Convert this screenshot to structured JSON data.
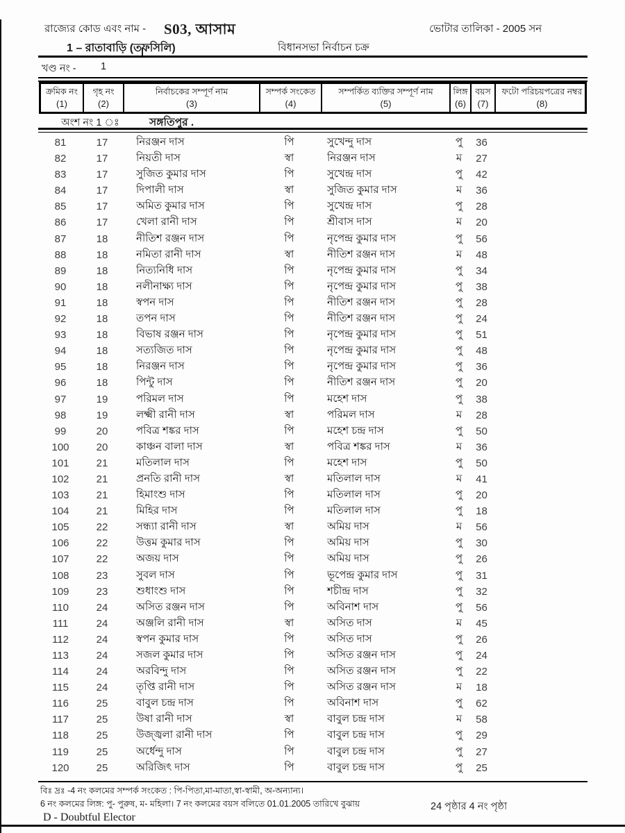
{
  "header": {
    "state_label": "রাজ্যের কোড এবং নাম -",
    "state_code": "S03, আসাম",
    "roll_title": "ভোটার তালিকা - 2005  সন",
    "constituency": "1 – রাতাবাড়ি (তফসিলি)",
    "assembly_label": "বিধানসভা নির্বাচন চক্র",
    "part_label": "খণ্ড নং  -",
    "part_value": "1"
  },
  "table": {
    "columns": [
      {
        "label": "ক্রমিক নং",
        "num": "(1)"
      },
      {
        "label": "গৃহ নং",
        "num": "(2)"
      },
      {
        "label": "নির্বাচকের সম্পূর্ণ নাম",
        "num": "(3)"
      },
      {
        "label": "সম্পর্ক সংকেত",
        "num": "(4)"
      },
      {
        "label": "সম্পর্কিত ব্যক্তির সম্পূর্ণ নাম",
        "num": "(5)"
      },
      {
        "label": "লিঙ্গ",
        "num": "(6)"
      },
      {
        "label": "বয়স",
        "num": "(7)"
      },
      {
        "label": "ফটো পরিচয়পত্রের নম্বর",
        "num": "(8)"
      }
    ],
    "section_label": "অংশ নং  1  ঃ",
    "section_name": "সঙ্গতিপুর .",
    "rows": [
      [
        "81",
        "17",
        "নিরঞ্জন দাস",
        "পি",
        "সুখেন্দু দাস",
        "পু",
        "36",
        ""
      ],
      [
        "82",
        "17",
        "নিয়তী দাস",
        "স্বা",
        "নিরঞ্জন দাস",
        "ম",
        "27",
        ""
      ],
      [
        "83",
        "17",
        "সুজিত কুমার দাস",
        "পি",
        "সুখেন্দ্র দাস",
        "পু",
        "42",
        ""
      ],
      [
        "84",
        "17",
        "দিপালী দাস",
        "স্বা",
        "সুজিত কুমার দাস",
        "ম",
        "36",
        ""
      ],
      [
        "85",
        "17",
        "অমিত কুমার দাস",
        "পি",
        "সুখেন্দ্র দাস",
        "পু",
        "28",
        ""
      ],
      [
        "86",
        "17",
        "খেলা রানী দাস",
        "পি",
        "শ্রীবাস দাস",
        "ম",
        "20",
        ""
      ],
      [
        "87",
        "18",
        "নীতিশ রঞ্জন দাস",
        "পি",
        "নৃপেন্দ্র কুমার দাস",
        "পু",
        "56",
        ""
      ],
      [
        "88",
        "18",
        "নমিতা রানী দাস",
        "স্বা",
        "নীতিশ রঞ্জন দাস",
        "ম",
        "48",
        ""
      ],
      [
        "89",
        "18",
        "নিত্যনিধি দাস",
        "পি",
        "নৃপেন্দ্র কুমার দাস",
        "পু",
        "34",
        ""
      ],
      [
        "90",
        "18",
        "নলীনাক্ষ্য দাস",
        "পি",
        "নৃপেন্দ্র কুমার দাস",
        "পু",
        "38",
        ""
      ],
      [
        "91",
        "18",
        "স্বপন দাস",
        "পি",
        "নীতিশ রঞ্জন দাস",
        "পু",
        "28",
        ""
      ],
      [
        "92",
        "18",
        "তপন দাস",
        "পি",
        "নীতিশ রঞ্জন দাস",
        "পু",
        "24",
        ""
      ],
      [
        "93",
        "18",
        "বিভাষ রঞ্জন দাস",
        "পি",
        "নৃপেন্দ্র কুমার দাস",
        "পু",
        "51",
        ""
      ],
      [
        "94",
        "18",
        "সত্যজিত দাস",
        "পি",
        "নৃপেন্দ্র কুমার দাস",
        "পু",
        "48",
        ""
      ],
      [
        "95",
        "18",
        "নিরঞ্জন দাস",
        "পি",
        "নৃপেন্দ্র কুমার দাস",
        "পু",
        "36",
        ""
      ],
      [
        "96",
        "18",
        "পিন্টু দাস",
        "পি",
        "নীতিশ রঞ্জন দাস",
        "পু",
        "20",
        ""
      ],
      [
        "97",
        "19",
        "পরিমল দাস",
        "পি",
        "মহেশ দাস",
        "পু",
        "38",
        ""
      ],
      [
        "98",
        "19",
        "লক্ষ্মী রানী দাস",
        "স্বা",
        "পরিমল দাস",
        "ম",
        "28",
        ""
      ],
      [
        "99",
        "20",
        "পবিত্র শঙ্কর দাস",
        "পি",
        "মহেশ চন্দ্র দাস",
        "পু",
        "50",
        ""
      ],
      [
        "100",
        "20",
        "কাঞ্চন বালা দাস",
        "স্বা",
        "পবিত্র শঙ্কর দাস",
        "ম",
        "36",
        ""
      ],
      [
        "101",
        "21",
        "মতিলাল দাস",
        "পি",
        "মহেশ দাস",
        "পু",
        "50",
        ""
      ],
      [
        "102",
        "21",
        "প্রনতি রানী দাস",
        "স্বা",
        "মতিলাল দাস",
        "ম",
        "41",
        ""
      ],
      [
        "103",
        "21",
        "হিমাংশু দাস",
        "পি",
        "মতিলাল দাস",
        "পু",
        "20",
        ""
      ],
      [
        "104",
        "21",
        "মিহির দাস",
        "পি",
        "মতিলাল দাস",
        "পু",
        "18",
        ""
      ],
      [
        "105",
        "22",
        "সন্ধ্যা রানী দাস",
        "স্বা",
        "অমিয় দাস",
        "ম",
        "56",
        ""
      ],
      [
        "106",
        "22",
        "উত্তম কুমার দাস",
        "পি",
        "অমিয় দাস",
        "পু",
        "30",
        ""
      ],
      [
        "107",
        "22",
        "অজয় দাস",
        "পি",
        "অমিয় দাস",
        "পু",
        "26",
        ""
      ],
      [
        "108",
        "23",
        "সুবল দাস",
        "পি",
        "ভূপেন্দ্র কুমার দাস",
        "পু",
        "31",
        ""
      ],
      [
        "109",
        "23",
        "শুধাংশু দাস",
        "পি",
        "শচীন্দ্র দাস",
        "পু",
        "32",
        ""
      ],
      [
        "110",
        "24",
        "অসিত রঞ্জন দাস",
        "পি",
        "অবিনাশ দাস",
        "পু",
        "56",
        ""
      ],
      [
        "111",
        "24",
        "অঞ্জলি রানী দাস",
        "স্বা",
        "অসিত দাস",
        "ম",
        "45",
        ""
      ],
      [
        "112",
        "24",
        "স্বপন কুমার দাস",
        "পি",
        "অসিত দাস",
        "পু",
        "26",
        ""
      ],
      [
        "113",
        "24",
        "সজল কুমার দাস",
        "পি",
        "অসিত রঞ্জন দাস",
        "পু",
        "24",
        ""
      ],
      [
        "114",
        "24",
        "অরবিন্দু দাস",
        "পি",
        "অসিত রঞ্জন দাস",
        "পু",
        "22",
        ""
      ],
      [
        "115",
        "24",
        "তৃপ্তি রানী দাস",
        "পি",
        "অসিত রঞ্জন দাস",
        "ম",
        "18",
        ""
      ],
      [
        "116",
        "25",
        "বাবুল চন্দ্র দাস",
        "পি",
        "অবিনাশ দাস",
        "পু",
        "62",
        ""
      ],
      [
        "117",
        "25",
        "উষা রানী দাস",
        "স্বা",
        "বাবুল চন্দ্র দাস",
        "ম",
        "58",
        ""
      ],
      [
        "118",
        "25",
        "উজ্জ্বলা রানী দাস",
        "পি",
        "বাবুল চন্দ্র দাস",
        "পু",
        "29",
        ""
      ],
      [
        "119",
        "25",
        "অর্ধেন্দু দাস",
        "পি",
        "বাবুল চন্দ্র দাস",
        "পু",
        "27",
        ""
      ],
      [
        "120",
        "25",
        "অরিজিৎ দাস",
        "পি",
        "বাবুল চন্দ্র দাস",
        "পু",
        "25",
        ""
      ]
    ]
  },
  "footer": {
    "note1": "বিঃ দ্রঃ -4 নং কলমের সম্পর্ক সংকেত : পি-পিতা,মা-মাতা,স্বা-স্বামী, অ-অন্যান্য।",
    "note2": "6 নং কলমের লিঙ্গ: পু- পুরুষ, ম- মহিলা।  7 নং কলমের বয়স বলিতে   01.01.2005   তারিখে বুঝায়",
    "note3": "D - Doubtful Elector",
    "page_info": "24 পৃষ্ঠার 4  নং পৃষ্ঠা"
  }
}
